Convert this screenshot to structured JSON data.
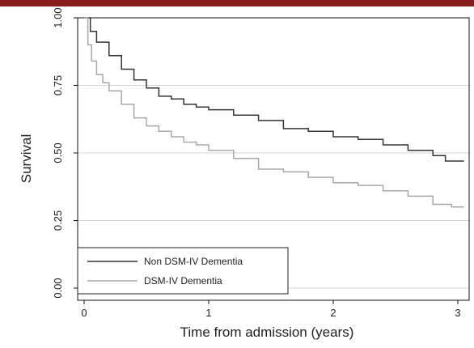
{
  "chart_data": {
    "type": "line",
    "title": "",
    "xlabel": "Time from admission (years)",
    "ylabel": "Survival",
    "xlim": [
      0,
      3.1
    ],
    "ylim": [
      0,
      1
    ],
    "x_ticks": [
      0,
      1,
      2,
      3
    ],
    "x_tick_labels": [
      "0",
      "1",
      "2",
      "3"
    ],
    "y_ticks": [
      0,
      0.25,
      0.5,
      0.75,
      1
    ],
    "y_tick_labels": [
      "0.00",
      "0.25",
      "0.50",
      "0.75",
      "1.00"
    ],
    "grid": true,
    "legend_position": "bottom-left",
    "series": [
      {
        "name": "Non DSM-IV Dementia",
        "color": "#333333",
        "x": [
          0,
          0.05,
          0.1,
          0.2,
          0.3,
          0.4,
          0.5,
          0.6,
          0.7,
          0.8,
          0.9,
          1.0,
          1.2,
          1.4,
          1.6,
          1.8,
          2.0,
          2.2,
          2.4,
          2.6,
          2.8,
          2.9,
          3.05
        ],
        "y": [
          1.0,
          0.95,
          0.91,
          0.86,
          0.81,
          0.77,
          0.74,
          0.71,
          0.7,
          0.68,
          0.67,
          0.66,
          0.64,
          0.62,
          0.59,
          0.58,
          0.56,
          0.55,
          0.53,
          0.51,
          0.49,
          0.47,
          0.47
        ]
      },
      {
        "name": "DSM-IV Dementia",
        "color": "#a8a8a8",
        "x": [
          0,
          0.03,
          0.06,
          0.1,
          0.15,
          0.2,
          0.3,
          0.4,
          0.5,
          0.6,
          0.7,
          0.8,
          0.9,
          1.0,
          1.2,
          1.4,
          1.6,
          1.8,
          2.0,
          2.2,
          2.4,
          2.6,
          2.8,
          2.95,
          3.05
        ],
        "y": [
          1.0,
          0.9,
          0.84,
          0.79,
          0.76,
          0.73,
          0.68,
          0.63,
          0.6,
          0.58,
          0.56,
          0.54,
          0.53,
          0.51,
          0.48,
          0.44,
          0.43,
          0.41,
          0.39,
          0.38,
          0.36,
          0.34,
          0.31,
          0.3,
          0.3
        ]
      }
    ]
  }
}
